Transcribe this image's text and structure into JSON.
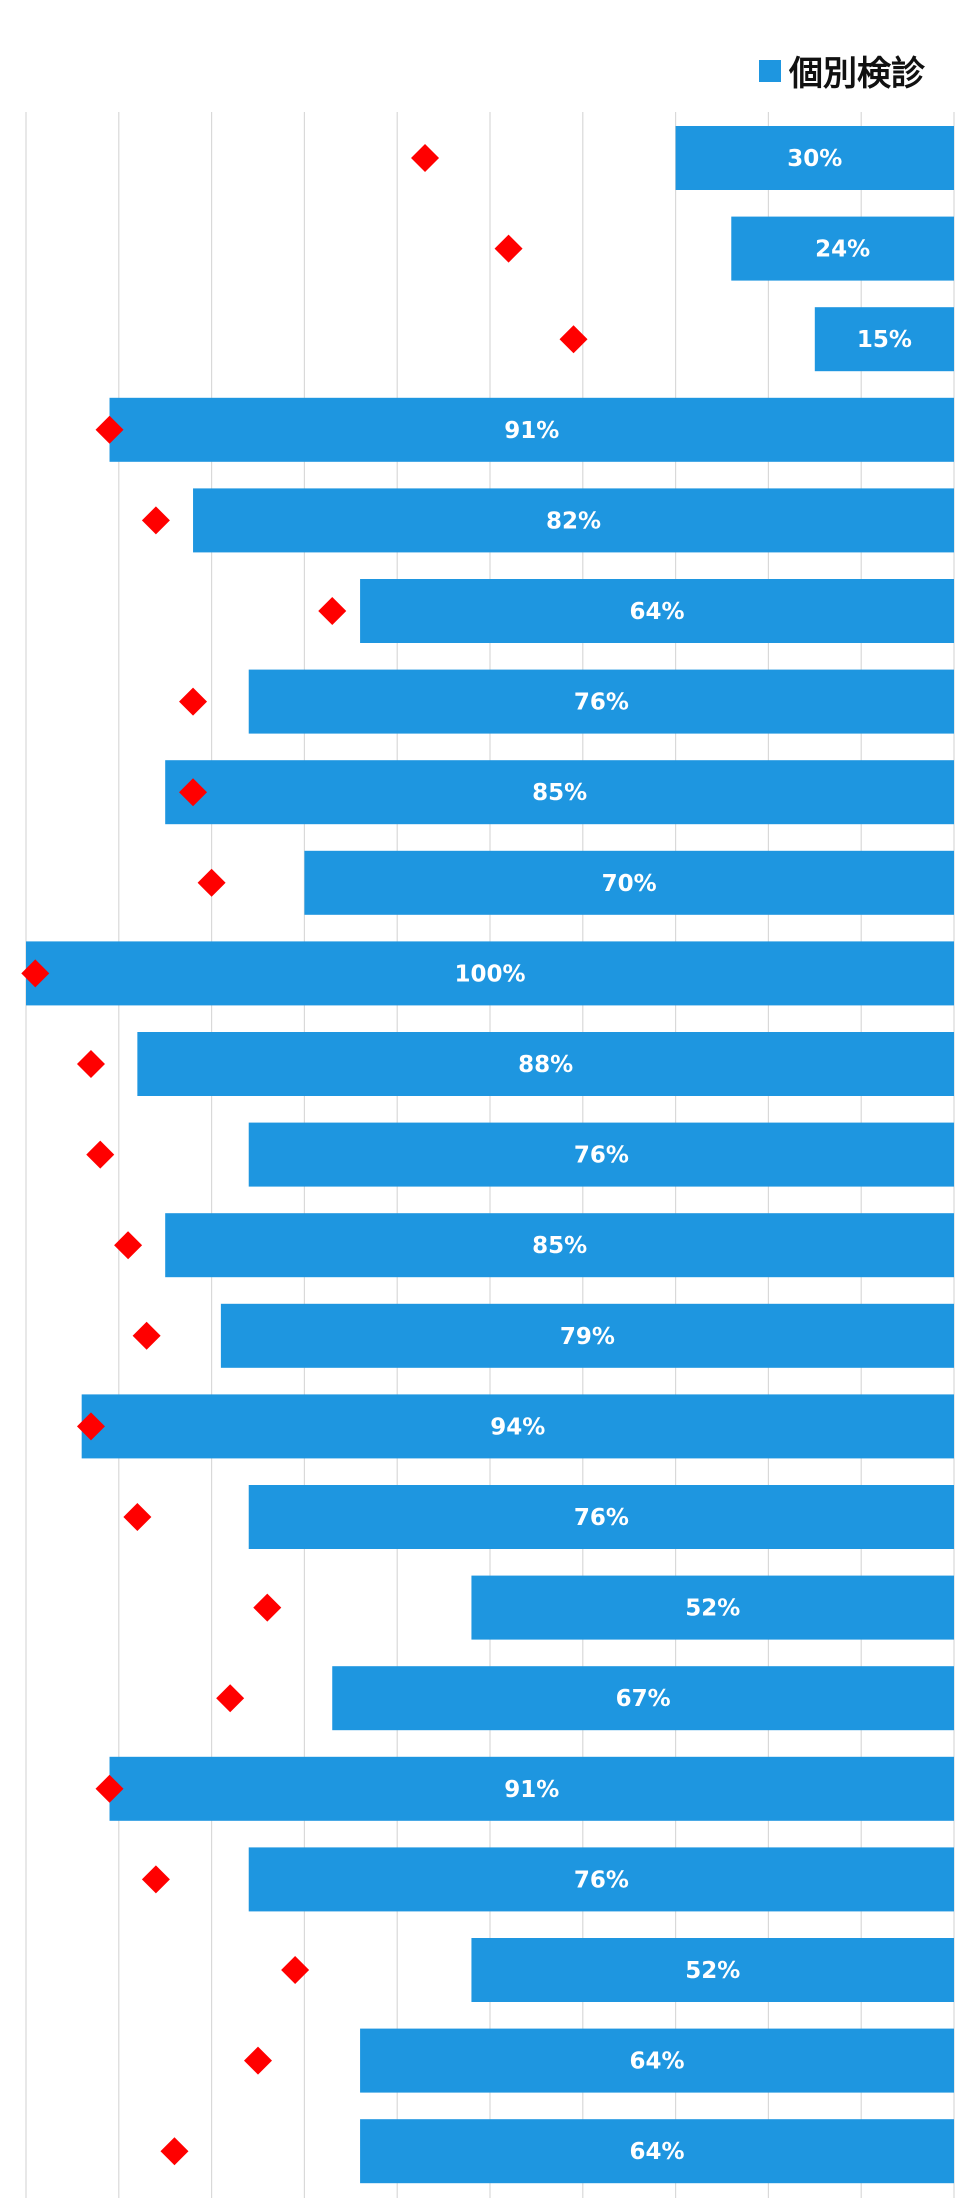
{
  "chart_data": {
    "type": "bar",
    "orientation": "horizontal",
    "bar_direction": "right-to-left",
    "xlim": [
      0,
      100
    ],
    "grid": true,
    "legend_position": "top-right",
    "series": [
      {
        "name": "個別検診",
        "kind": "bar",
        "color": "#1e96e0",
        "values": [
          30,
          24,
          15,
          91,
          82,
          64,
          76,
          85,
          70,
          100,
          88,
          76,
          85,
          79,
          94,
          76,
          52,
          67,
          91,
          76,
          52,
          64,
          64
        ],
        "labels": [
          "30%",
          "24%",
          "15%",
          "91%",
          "82%",
          "64%",
          "76%",
          "85%",
          "70%",
          "100%",
          "88%",
          "76%",
          "85%",
          "79%",
          "94%",
          "76%",
          "52%",
          "67%",
          "91%",
          "76%",
          "52%",
          "64%",
          "64%"
        ]
      },
      {
        "kind": "marker",
        "color": "#ff0000",
        "values": [
          57,
          48,
          41,
          91,
          86,
          67,
          82,
          82,
          80,
          99,
          93,
          92,
          89,
          87,
          93,
          88,
          74,
          78,
          91,
          86,
          71,
          75,
          84
        ]
      }
    ]
  }
}
